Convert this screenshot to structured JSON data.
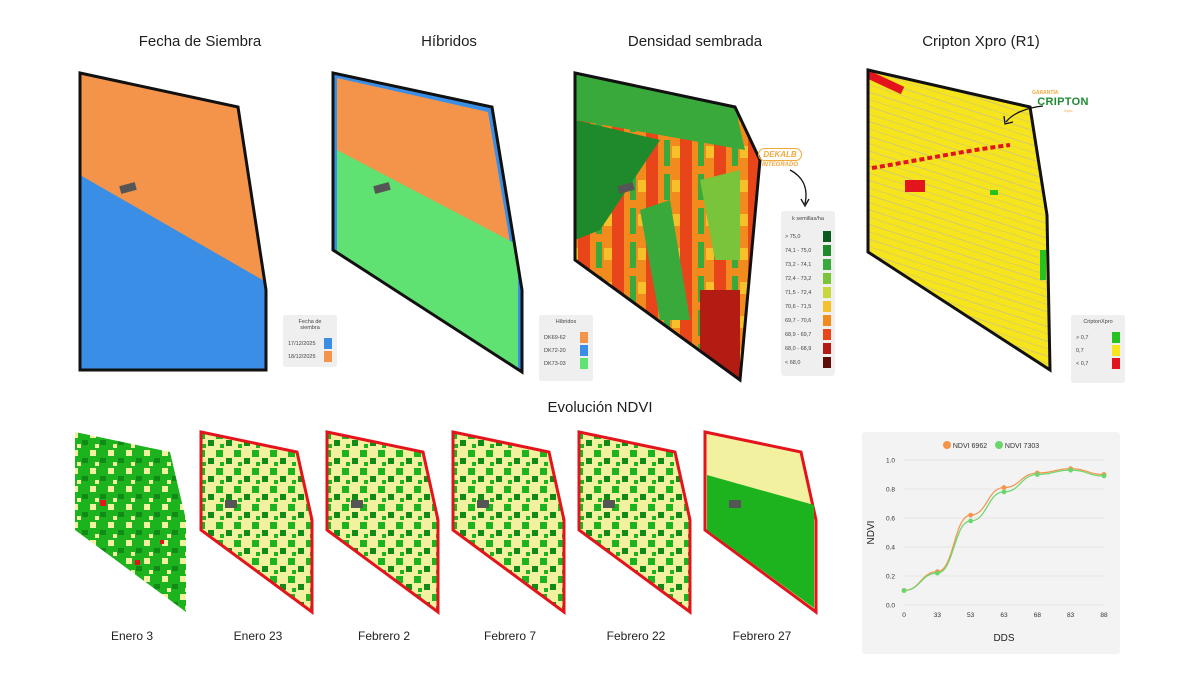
{
  "titles": {
    "fecha": "Fecha de Siembra",
    "hibridos": "Híbridos",
    "densidad": "Densidad sembrada",
    "cripton": "Cripton Xpro (R1)",
    "ndvi": "Evolución NDVI"
  },
  "legend_fecha": {
    "title": "Fecha de siembra",
    "items": [
      {
        "label": "17/12/2025",
        "color": "#3a8ee6"
      },
      {
        "label": "18/12/2025",
        "color": "#f4944a"
      }
    ]
  },
  "legend_hibridos": {
    "title": "Híbridos",
    "items": [
      {
        "label": "DK69-62",
        "color": "#f4944a"
      },
      {
        "label": "DK72-20",
        "color": "#3a8ee6"
      },
      {
        "label": "DK73-03",
        "color": "#5fe271"
      }
    ]
  },
  "legend_densidad": {
    "title": "k semillas/ha",
    "items": [
      {
        "label": "> 75,0",
        "color": "#0d5a1f"
      },
      {
        "label": "74,1 - 75,0",
        "color": "#1f8a2c"
      },
      {
        "label": "73,2 - 74,1",
        "color": "#38a93a"
      },
      {
        "label": "72,4 - 73,2",
        "color": "#79c43b"
      },
      {
        "label": "71,5 - 72,4",
        "color": "#c8d83c"
      },
      {
        "label": "70,6 - 71,5",
        "color": "#f5c02a"
      },
      {
        "label": "69,7 - 70,6",
        "color": "#f28b1d"
      },
      {
        "label": "68,9 - 69,7",
        "color": "#e8461a"
      },
      {
        "label": "68,0 - 68,9",
        "color": "#b21c12"
      },
      {
        "label": "< 68,0",
        "color": "#5e0d07"
      }
    ]
  },
  "legend_cripton": {
    "title": "CriptonXpro",
    "items": [
      {
        "label": "> 0,7",
        "color": "#27c21f"
      },
      {
        "label": "0,7",
        "color": "#f6e41c"
      },
      {
        "label": "< 0,7",
        "color": "#e3141c"
      }
    ]
  },
  "stamps": {
    "dekalb": "DEKALB",
    "dekalb_sub": "INTEGRADO",
    "cripton_top": "GARANTÍA",
    "cripton": "CRIPTON",
    "cripton_sub": "Xpro"
  },
  "ndvi_dates": [
    "Enero 3",
    "Enero 23",
    "Febrero 2",
    "Febrero 7",
    "Febrero 22",
    "Febrero 27"
  ],
  "chart_data": {
    "type": "line",
    "x": [
      0,
      33,
      53,
      63,
      68,
      83,
      88
    ],
    "series": [
      {
        "name": "NDVI 6962",
        "color": "#f4944a",
        "values": [
          0.1,
          0.23,
          0.62,
          0.81,
          0.91,
          0.94,
          0.9
        ]
      },
      {
        "name": "NDVI 7303",
        "color": "#6bd66b",
        "values": [
          0.1,
          0.22,
          0.58,
          0.78,
          0.9,
          0.93,
          0.89
        ]
      }
    ],
    "xlabel": "DDS",
    "ylabel": "NDVI",
    "ylim": [
      0,
      1.0
    ],
    "yticks": [
      "0.0",
      "0.2",
      "0.4",
      "0.6",
      "0.8",
      "1.0"
    ],
    "xticks": [
      "0",
      "33",
      "53",
      "63",
      "68",
      "83",
      "88"
    ]
  }
}
